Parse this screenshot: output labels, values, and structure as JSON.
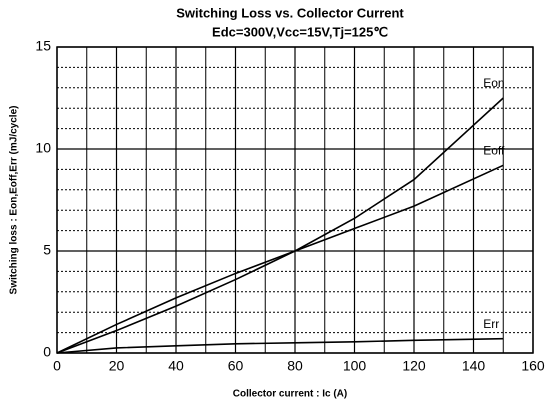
{
  "chart_data": {
    "type": "line",
    "title": "Switching Loss vs. Collector Current",
    "subtitle": "Edc=300V,Vcc=15V,Tj=125℃",
    "x_label": "Collector current : Ic (A)",
    "y_label": "Switching loss : Eon,Eoff,Err (mJ/cycle)",
    "x": [
      0,
      20,
      40,
      60,
      80,
      100,
      120,
      150
    ],
    "series": [
      {
        "name": "Eon",
        "color": "#000000",
        "values": [
          0,
          1.1,
          2.3,
          3.6,
          5.0,
          6.6,
          8.5,
          12.5
        ]
      },
      {
        "name": "Eoff",
        "color": "#000000",
        "values": [
          0,
          1.4,
          2.7,
          3.9,
          5.0,
          6.1,
          7.2,
          9.2
        ]
      },
      {
        "name": "Err",
        "color": "#000000",
        "values": [
          0,
          0.25,
          0.35,
          0.45,
          0.5,
          0.55,
          0.62,
          0.7
        ]
      }
    ],
    "xlim": [
      0,
      160
    ],
    "ylim": [
      0,
      15
    ],
    "xticks": [
      0,
      20,
      40,
      60,
      80,
      100,
      120,
      140,
      160
    ],
    "yticks": [
      0,
      5,
      10,
      15
    ],
    "minor_xticks": [
      10,
      30,
      50,
      70,
      90,
      110,
      130,
      150
    ],
    "minor_yticks": [
      1,
      2,
      3,
      4,
      6,
      7,
      8,
      9,
      11,
      12,
      13,
      14
    ],
    "grid": true
  }
}
